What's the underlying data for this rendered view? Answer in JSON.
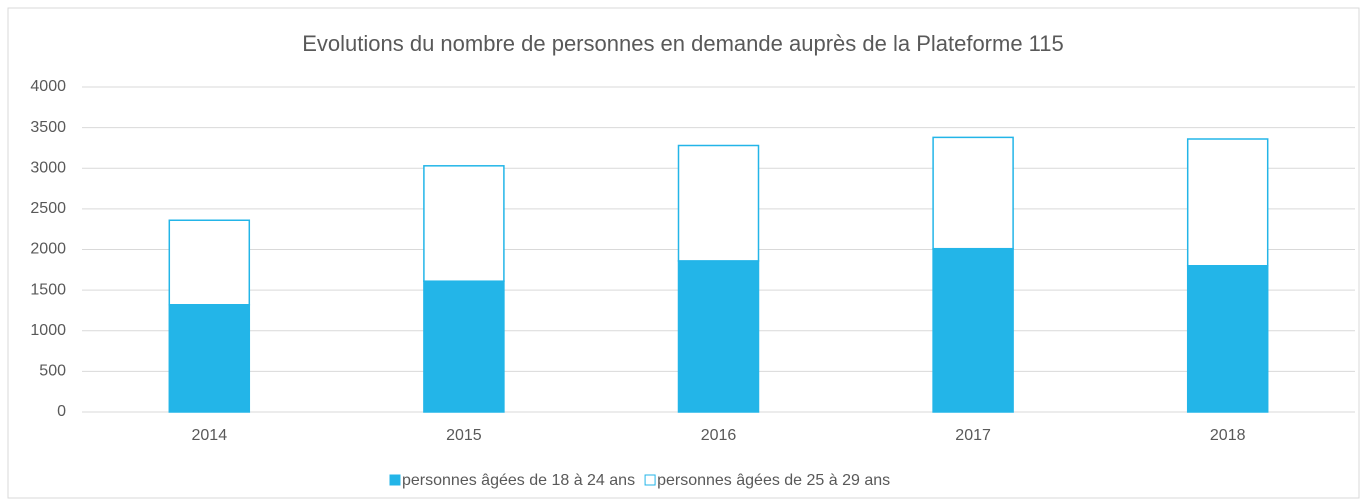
{
  "chart_data": {
    "type": "stacked_bar",
    "title": "Evolutions du nombre de personnes en demande auprès de la Plateforme 115",
    "categories": [
      "2014",
      "2015",
      "2016",
      "2017",
      "2018"
    ],
    "series": [
      {
        "name": "personnes âgées de 18 à 24 ans",
        "color": "#23b5e8",
        "values": [
          1320,
          1610,
          1860,
          2010,
          1800
        ]
      },
      {
        "name": "personnes âgées de 25 à 29 ans",
        "color": "#23b5e8",
        "values": [
          1040,
          1420,
          1420,
          1370,
          1560
        ]
      }
    ],
    "ylim": [
      0,
      4000
    ],
    "yticks": [
      0,
      500,
      1000,
      1500,
      2000,
      2500,
      3000,
      3500,
      4000
    ],
    "grid": true,
    "legend": "bottom"
  }
}
